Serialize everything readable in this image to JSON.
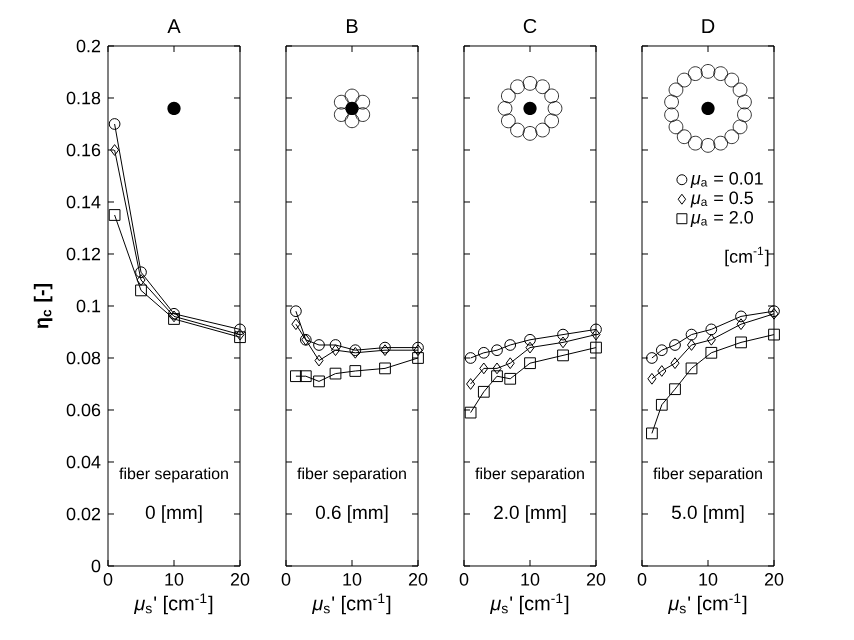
{
  "chart_data": [
    {
      "type": "line",
      "title": "A",
      "xlabel": "*μ*$_{s}$' [cm$^{-1}$]",
      "ylabel": "η$_{c}$ [-]",
      "xlim": [
        0,
        20
      ],
      "xticks": [
        0,
        10,
        20
      ],
      "ylim": [
        0,
        0.2
      ],
      "yticks": [
        0,
        0.02,
        0.04,
        0.06,
        0.08,
        0.1,
        0.12,
        0.14,
        0.16,
        0.18,
        0.2
      ],
      "x": [
        1,
        5,
        10,
        20
      ],
      "line_style": "solid",
      "annotations": [
        "fiber separation",
        "0 [mm]"
      ],
      "series": [
        {
          "color": "#000000",
          "marker": "circle",
          "values": [
            0.17,
            0.113,
            0.097,
            0.091
          ]
        },
        {
          "color": "#000000",
          "marker": "diamond",
          "values": [
            0.16,
            0.11,
            0.096,
            0.089
          ]
        },
        {
          "color": "#000000",
          "marker": "square",
          "values": [
            0.135,
            0.106,
            0.095,
            0.088
          ]
        }
      ]
    },
    {
      "type": "line",
      "title": "B",
      "xlabel": "*μ*$_{s}$' [cm$^{-1}$]",
      "xlim": [
        0,
        20
      ],
      "xticks": [
        0,
        10,
        20
      ],
      "ylim": [
        0,
        0.2
      ],
      "yticks": [
        0,
        0.02,
        0.04,
        0.06,
        0.08,
        0.1,
        0.12,
        0.14,
        0.16,
        0.18,
        0.2
      ],
      "tick_labels": "x",
      "x": [
        1.5,
        3,
        5,
        7.5,
        10.5,
        15,
        20
      ],
      "line_style": "solid",
      "annotations": [
        "fiber separation",
        "0.6 [mm]"
      ],
      "series": [
        {
          "color": "#000000",
          "marker": "circle",
          "values": [
            0.098,
            0.087,
            0.085,
            0.085,
            0.083,
            0.084,
            0.084
          ]
        },
        {
          "color": "#000000",
          "marker": "diamond",
          "values": [
            0.093,
            0.087,
            0.079,
            0.083,
            0.082,
            0.083,
            0.083
          ]
        },
        {
          "color": "#000000",
          "marker": "square",
          "values": [
            0.073,
            0.073,
            0.071,
            0.074,
            0.075,
            0.076,
            0.08
          ]
        }
      ]
    },
    {
      "type": "line",
      "title": "C",
      "xlabel": "*μ*$_{s}$' [cm$^{-1}$]",
      "xlim": [
        0,
        20
      ],
      "xticks": [
        0,
        10,
        20
      ],
      "ylim": [
        0,
        0.2
      ],
      "yticks": [
        0,
        0.02,
        0.04,
        0.06,
        0.08,
        0.1,
        0.12,
        0.14,
        0.16,
        0.18,
        0.2
      ],
      "tick_labels": "x",
      "x": [
        1,
        3,
        5,
        7,
        10,
        15,
        20
      ],
      "line_style": "solid",
      "annotations": [
        "fiber separation",
        "2.0 [mm]"
      ],
      "series": [
        {
          "color": "#000000",
          "marker": "circle",
          "values": [
            0.08,
            0.082,
            0.083,
            0.085,
            0.087,
            0.089,
            0.091
          ]
        },
        {
          "color": "#000000",
          "marker": "diamond",
          "values": [
            0.07,
            0.076,
            0.076,
            0.078,
            0.084,
            0.086,
            0.089
          ]
        },
        {
          "color": "#000000",
          "marker": "square",
          "values": [
            0.059,
            0.067,
            0.073,
            0.072,
            0.078,
            0.081,
            0.084
          ]
        }
      ]
    },
    {
      "type": "line",
      "title": "D",
      "xlabel": "*μ*$_{s}$' [cm$^{-1}$]",
      "xlim": [
        0,
        20
      ],
      "xticks": [
        0,
        10,
        20
      ],
      "ylim": [
        0,
        0.2
      ],
      "yticks": [
        0,
        0.02,
        0.04,
        0.06,
        0.08,
        0.1,
        0.12,
        0.14,
        0.16,
        0.18,
        0.2
      ],
      "tick_labels": "x",
      "x": [
        1.5,
        3,
        5,
        7.5,
        10.5,
        15,
        20
      ],
      "line_style": "solid",
      "legend": "top right",
      "annotations": [
        "fiber separation",
        "5.0 [mm]",
        "[cm$^{-1}$]"
      ],
      "series": [
        {
          "name": "*μ*$_{a}$ = 0.01",
          "color": "#000000",
          "marker": "circle",
          "values": [
            0.08,
            0.083,
            0.085,
            0.089,
            0.091,
            0.096,
            0.098
          ]
        },
        {
          "name": "*μ*$_{a}$ = 0.5",
          "color": "#000000",
          "marker": "diamond",
          "values": [
            0.072,
            0.075,
            0.078,
            0.085,
            0.087,
            0.093,
            0.097
          ]
        },
        {
          "name": "*μ*$_{a}$ = 2.0",
          "color": "#000000",
          "marker": "square",
          "values": [
            0.051,
            0.062,
            0.068,
            0.076,
            0.082,
            0.086,
            0.089
          ]
        }
      ]
    }
  ]
}
